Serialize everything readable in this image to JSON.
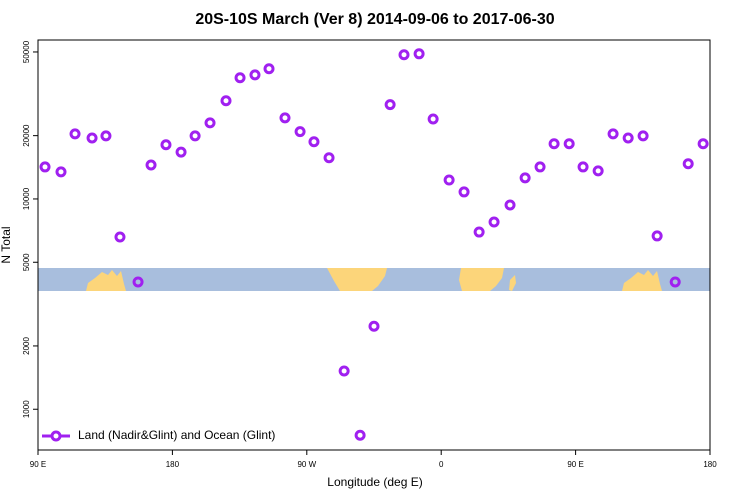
{
  "chart_data": {
    "type": "scatter",
    "title": "20S-10S March (Ver 8)   2014-09-06 to 2017-06-30",
    "x_label": "Longitude (deg E)",
    "y_label": "N Total",
    "log_y": true,
    "legend": "bottom-left",
    "xlim": [
      90,
      540
    ],
    "ylim": [
      640,
      57000
    ],
    "xticks": [
      {
        "value": 90,
        "label": "90 E"
      },
      180,
      {
        "value": 270,
        "label": "90 W"
      },
      {
        "value": 360,
        "label": "0"
      },
      {
        "value": 450,
        "label": "90 E"
      },
      {
        "value": 540,
        "label": "180"
      }
    ],
    "yticks": [
      1000,
      2000,
      5000,
      10000,
      20000,
      50000
    ],
    "series": [
      {
        "name": "Land (Nadir&Glint) and Ocean (Glint)",
        "color": "#a020f0",
        "x": [
          94.7,
          105.4,
          114.8,
          126.2,
          135.5,
          144.9,
          157,
          165.7,
          175.7,
          185.8,
          195.2,
          205.2,
          215.9,
          225.3,
          235.3,
          244.7,
          255.4,
          265.5,
          274.8,
          284.9,
          295,
          305.7,
          315,
          325.8,
          335.1,
          345.2,
          354.6,
          365.3,
          375.3,
          385.4,
          395.4,
          406.1,
          416.2,
          426.2,
          435.6,
          445.7,
          455,
          465.1,
          475.1,
          485.2,
          495.2,
          504.6,
          516.7,
          525.4,
          535.4
        ],
        "values": [
          14200,
          13450,
          20400,
          19500,
          19950,
          6590,
          4030,
          14500,
          18100,
          16700,
          19950,
          23000,
          29300,
          37700,
          38900,
          41600,
          24300,
          20900,
          18700,
          15700,
          1520,
          752,
          2480,
          28100,
          48500,
          49000,
          24000,
          12300,
          10800,
          6960,
          7770,
          9360,
          12600,
          14200,
          18300,
          18300,
          14200,
          13600,
          20400,
          19500,
          19950,
          6670,
          4030,
          14700,
          18300
        ]
      }
    ]
  }
}
